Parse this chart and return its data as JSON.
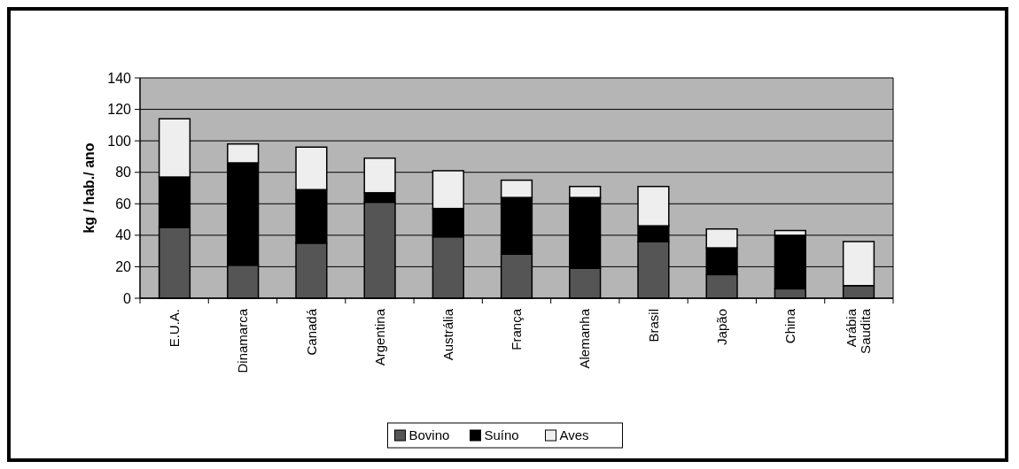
{
  "chart_data": {
    "type": "bar",
    "stacked": true,
    "ylabel": "kg / hab./ ano",
    "categories": [
      "E.U.A.",
      "Dinamarca",
      "Canadá",
      "Argentina",
      "Austrália",
      "França",
      "Alemanha",
      "Brasil",
      "Japão",
      "China",
      "Arábia Saudita"
    ],
    "series": [
      {
        "name": "Bovino",
        "color": "#555555",
        "values": [
          45,
          21,
          35,
          61,
          39,
          28,
          19,
          36,
          15,
          6,
          8
        ]
      },
      {
        "name": "Suíno",
        "color": "#000000",
        "values": [
          32,
          65,
          34,
          6,
          18,
          36,
          45,
          10,
          17,
          34,
          0
        ]
      },
      {
        "name": "Aves",
        "color": "#eeeeee",
        "values": [
          37,
          12,
          27,
          22,
          24,
          11,
          7,
          25,
          12,
          3,
          28
        ]
      }
    ],
    "ylim": [
      0,
      140
    ],
    "yticks": [
      0,
      20,
      40,
      60,
      80,
      100,
      120,
      140
    ],
    "grid": "y",
    "legend": "bottom"
  }
}
